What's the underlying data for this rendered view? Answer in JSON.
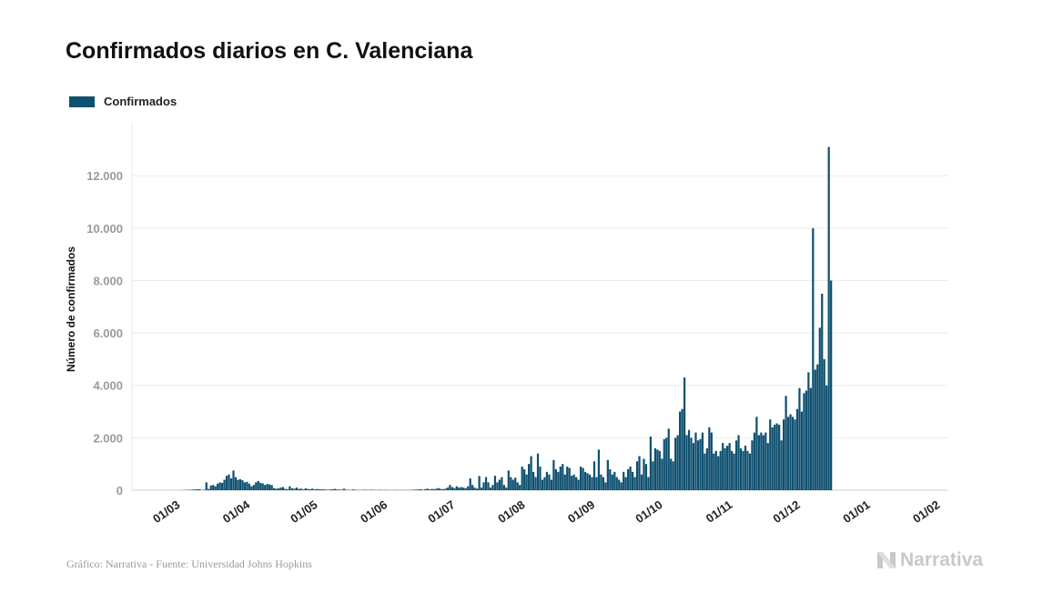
{
  "title": "Confirmados diarios en C. Valenciana",
  "legend": {
    "label": "Confirmados",
    "color": "#0f5070"
  },
  "footer": {
    "source": "Gráfico: Narrativa - Fuente: Universidad Johns Hopkins",
    "brand": "Narrativa"
  },
  "chart_data": {
    "type": "bar",
    "title": "Confirmados diarios en C. Valenciana",
    "ylabel": "Número de confirmados",
    "xlabel": "",
    "ylim": [
      0,
      13500
    ],
    "y_ticks": [
      0,
      2000,
      4000,
      6000,
      8000,
      10000,
      12000
    ],
    "y_tick_labels": [
      "0",
      "2.000",
      "4.000",
      "6.000",
      "8.000",
      "10.000",
      "12.000"
    ],
    "x_ticks": [
      "01/03",
      "01/04",
      "01/05",
      "01/06",
      "01/07",
      "01/08",
      "01/09",
      "01/10",
      "01/11",
      "01/12",
      "01/01",
      "01/02"
    ],
    "grid": true,
    "legend_position": "top-left",
    "series": [
      {
        "name": "Confirmados",
        "color": "#0f5070",
        "start_date": "2020-02-27",
        "values": [
          0,
          0,
          0,
          0,
          0,
          1,
          2,
          0,
          3,
          5,
          8,
          12,
          15,
          20,
          25,
          30,
          35,
          40,
          10,
          20,
          300,
          50,
          180,
          200,
          150,
          250,
          300,
          280,
          400,
          550,
          600,
          450,
          750,
          500,
          400,
          420,
          380,
          300,
          320,
          250,
          150,
          200,
          300,
          350,
          280,
          260,
          200,
          240,
          220,
          200,
          80,
          60,
          70,
          100,
          120,
          50,
          40,
          150,
          70,
          60,
          100,
          50,
          60,
          30,
          70,
          50,
          40,
          60,
          30,
          45,
          40,
          30,
          35,
          25,
          20,
          30,
          40,
          50,
          30,
          25,
          20,
          60,
          20,
          15,
          10,
          30,
          20,
          15,
          10,
          10,
          20,
          15,
          10,
          20,
          12,
          10,
          8,
          15,
          10,
          12,
          10,
          8,
          6,
          10,
          12,
          8,
          9,
          10,
          8,
          12,
          10,
          15,
          20,
          25,
          30,
          40,
          20,
          40,
          60,
          30,
          50,
          40,
          60,
          80,
          50,
          40,
          60,
          100,
          200,
          120,
          80,
          150,
          100,
          120,
          100,
          80,
          150,
          450,
          200,
          100,
          60,
          540,
          100,
          300,
          500,
          300,
          100,
          200,
          550,
          300,
          400,
          500,
          200,
          100,
          750,
          500,
          400,
          480,
          300,
          200,
          900,
          800,
          600,
          1000,
          1300,
          700,
          500,
          1400,
          900,
          400,
          500,
          700,
          600,
          400,
          1150,
          800,
          700,
          900,
          1000,
          600,
          900,
          850,
          550,
          600,
          500,
          400,
          900,
          850,
          700,
          650,
          600,
          500,
          1100,
          500,
          1550,
          600,
          500,
          300,
          1150,
          800,
          600,
          700,
          500,
          400,
          300,
          700,
          500,
          800,
          900,
          700,
          500,
          1100,
          1300,
          600,
          1200,
          1000,
          500,
          2050,
          1100,
          1600,
          1550,
          1500,
          1200,
          1950,
          2000,
          2350,
          1200,
          1100,
          2000,
          2100,
          3000,
          3100,
          4300,
          2100,
          2300,
          2000,
          1800,
          2200,
          1900,
          1950,
          2200,
          1400,
          1600,
          2400,
          2200,
          1400,
          1500,
          1300,
          1500,
          1800,
          1600,
          1700,
          1800,
          1500,
          1400,
          1900,
          2100,
          1600,
          1500,
          1700,
          1500,
          1400,
          1900,
          2200,
          2800,
          2100,
          2200,
          2100,
          2200,
          1800,
          2700,
          2400,
          2500,
          2550,
          2500,
          1900,
          2700,
          3600,
          2800,
          2900,
          2800,
          2700,
          3100,
          3900,
          3000,
          3700,
          3800,
          4500,
          3900,
          10000,
          4600,
          4800,
          6200,
          7500,
          5000,
          4000,
          13100,
          8000
        ]
      }
    ]
  }
}
